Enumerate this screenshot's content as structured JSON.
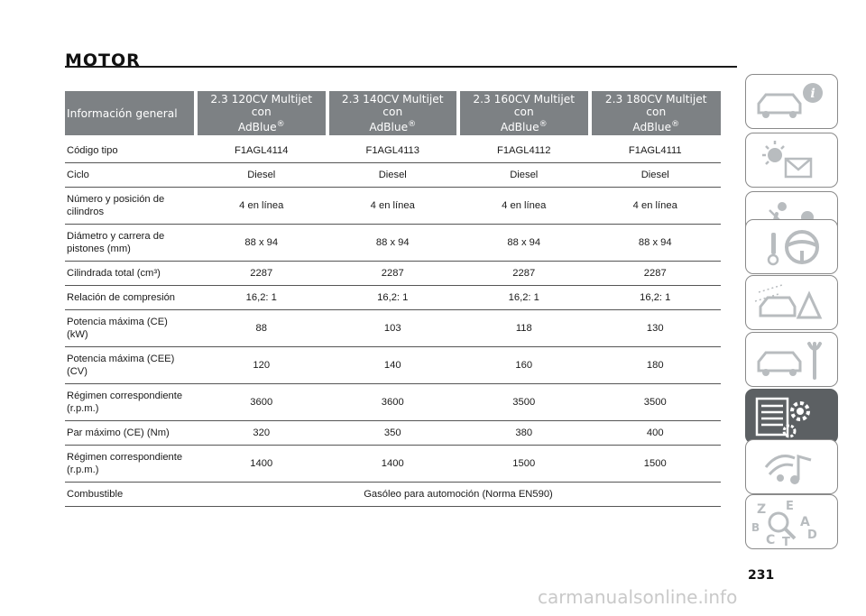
{
  "page": {
    "title": "MOTOR",
    "page_number": "231",
    "watermark": "carmanualsonline.info"
  },
  "table": {
    "headers": {
      "general": "Información general",
      "models": [
        {
          "line1": "2.3 120CV Multijet con",
          "line2": "AdBlue",
          "mark": "®"
        },
        {
          "line1": "2.3 140CV Multijet con",
          "line2": "AdBlue",
          "mark": "®"
        },
        {
          "line1": "2.3 160CV Multijet con",
          "line2": "AdBlue",
          "mark": "®"
        },
        {
          "line1": "2.3 180CV Multijet con",
          "line2": "AdBlue",
          "mark": "®"
        }
      ]
    },
    "rows": [
      {
        "label": "Código tipo",
        "values": [
          "F1AGL4114",
          "F1AGL4113",
          "F1AGL4112",
          "F1AGL4111"
        ]
      },
      {
        "label": "Ciclo",
        "values": [
          "Diesel",
          "Diesel",
          "Diesel",
          "Diesel"
        ]
      },
      {
        "label_line1": "Número y posición de",
        "label_line2": "cilindros",
        "values": [
          "4 en línea",
          "4 en línea",
          "4 en línea",
          "4 en línea"
        ]
      },
      {
        "label_line1": "Diámetro y carrera de",
        "label_line2": "pistones (mm)",
        "values": [
          "88 x 94",
          "88 x 94",
          "88 x 94",
          "88 x 94"
        ]
      },
      {
        "label": "Cilindrada total (cm³)",
        "values": [
          "2287",
          "2287",
          "2287",
          "2287"
        ]
      },
      {
        "label": "Relación de compresión",
        "values": [
          "16,2: 1",
          "16,2: 1",
          "16,2: 1",
          "16,2: 1"
        ]
      },
      {
        "label_line1": "Potencia máxima (CE)",
        "label_line2": "(kW)",
        "values": [
          "88",
          "103",
          "118",
          "130"
        ]
      },
      {
        "label_line1": "Potencia máxima (CEE)",
        "label_line2": "(CV)",
        "values": [
          "120",
          "140",
          "160",
          "180"
        ]
      },
      {
        "label_line1": "Régimen correspondiente",
        "label_line2": "(r.p.m.)",
        "values": [
          "3600",
          "3600",
          "3500",
          "3500"
        ]
      },
      {
        "label": "Par máximo (CE) (Nm)",
        "values": [
          "320",
          "350",
          "380",
          "400"
        ]
      },
      {
        "label_line1": "Régimen correspondiente",
        "label_line2": "(r.p.m.)",
        "values": [
          "1400",
          "1400",
          "1500",
          "1500"
        ]
      },
      {
        "label": "Combustible",
        "span_value": "Gasóleo para automoción (Norma EN590)"
      }
    ]
  },
  "sidebar": {
    "tabs": [
      {
        "icon": "car-info-icon"
      },
      {
        "icon": "warning-lights-icon"
      },
      {
        "icon": "safety-airbag-icon"
      },
      {
        "icon": "steering-wheel-icon"
      },
      {
        "icon": "emergency-icon"
      },
      {
        "icon": "maintenance-icon"
      },
      {
        "icon": "technical-data-icon",
        "active": true
      },
      {
        "icon": "multimedia-icon"
      },
      {
        "icon": "index-icon",
        "letters": [
          "Z",
          "E",
          "B",
          "A",
          "C",
          "T",
          "D"
        ]
      }
    ],
    "colors": {
      "active_tab": "#5c6063",
      "icon_gray": "#b8bcbf",
      "header_bg": "#7d8184"
    }
  }
}
